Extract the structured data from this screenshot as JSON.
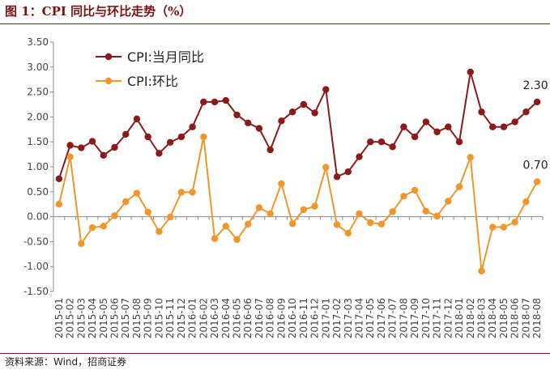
{
  "header": {
    "title": "图 1：CPI 同比与环比走势（%）"
  },
  "footer": {
    "source": "资料来源：Wind，招商证券"
  },
  "colors": {
    "yoy": "#8b1a1a",
    "mom": "#f0962a",
    "rule": "#8b1a1a",
    "title": "#7a1414"
  },
  "chart_data": {
    "type": "line",
    "categories": [
      "2015-01",
      "2015-02",
      "2015-03",
      "2015-04",
      "2015-05",
      "2015-06",
      "2015-07",
      "2015-08",
      "2015-09",
      "2015-10",
      "2015-11",
      "2015-12",
      "2016-01",
      "2016-02",
      "2016-03",
      "2016-04",
      "2016-05",
      "2016-06",
      "2016-07",
      "2016-08",
      "2016-09",
      "2016-10",
      "2016-11",
      "2016-12",
      "2017-01",
      "2017-02",
      "2017-03",
      "2017-04",
      "2017-05",
      "2017-06",
      "2017-07",
      "2017-08",
      "2017-09",
      "2017-10",
      "2017-11",
      "2017-12",
      "2018-01",
      "2018-02",
      "2018-03",
      "2018-04",
      "2018-05",
      "2018-06",
      "2018-07",
      "2018-08"
    ],
    "series": [
      {
        "name": "CPI:当月同比",
        "color": "#8b1a1a",
        "values": [
          0.76,
          1.43,
          1.38,
          1.51,
          1.23,
          1.39,
          1.65,
          1.96,
          1.6,
          1.27,
          1.49,
          1.6,
          1.8,
          2.3,
          2.3,
          2.33,
          2.04,
          1.88,
          1.77,
          1.34,
          1.92,
          2.1,
          2.25,
          2.08,
          2.55,
          0.8,
          0.9,
          1.2,
          1.5,
          1.5,
          1.4,
          1.8,
          1.6,
          1.9,
          1.7,
          1.8,
          1.5,
          2.9,
          2.1,
          1.8,
          1.8,
          1.9,
          2.1,
          2.3
        ]
      },
      {
        "name": "CPI:环比",
        "color": "#f0962a",
        "values": [
          0.25,
          1.2,
          -0.54,
          -0.22,
          -0.19,
          0.02,
          0.3,
          0.47,
          0.09,
          -0.3,
          -0.01,
          0.49,
          0.49,
          1.6,
          -0.44,
          -0.19,
          -0.46,
          -0.15,
          0.18,
          0.06,
          0.66,
          -0.14,
          0.14,
          0.21,
          0.99,
          -0.16,
          -0.33,
          0.06,
          -0.12,
          -0.15,
          0.1,
          0.41,
          0.53,
          0.11,
          0.01,
          0.31,
          0.6,
          1.19,
          -1.09,
          -0.21,
          -0.21,
          -0.11,
          0.3,
          0.7
        ]
      }
    ],
    "y_ticks": [
      "3.50",
      "3.00",
      "2.50",
      "2.00",
      "1.50",
      "1.00",
      "0.50",
      "0.00",
      "-0.50",
      "-1.00",
      "-1.50"
    ],
    "ylim": [
      -1.5,
      3.5
    ],
    "grid": false,
    "legend": "top-left",
    "end_labels": [
      "2.30",
      "0.70"
    ],
    "xlabel": "",
    "ylabel": ""
  }
}
